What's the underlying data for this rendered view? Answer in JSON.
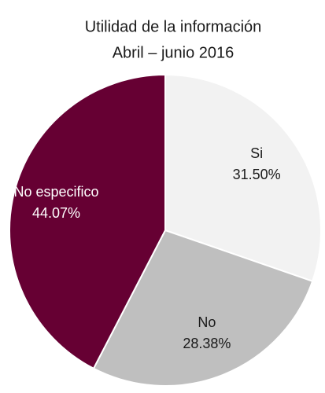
{
  "chart_data": {
    "type": "pie",
    "title": "Utilidad de la información",
    "subtitle": "Abril – junio 2016",
    "categories": [
      "Si",
      "No",
      "No especifico"
    ],
    "values": [
      31.5,
      28.38,
      44.07
    ],
    "value_labels": [
      "31.50%",
      "28.38%",
      "44.07%"
    ],
    "colors": [
      "#f2f2f2",
      "#bfbfbf",
      "#660033"
    ],
    "label_colors": [
      "#1a1a1a",
      "#1a1a1a",
      "#ffffff"
    ]
  }
}
